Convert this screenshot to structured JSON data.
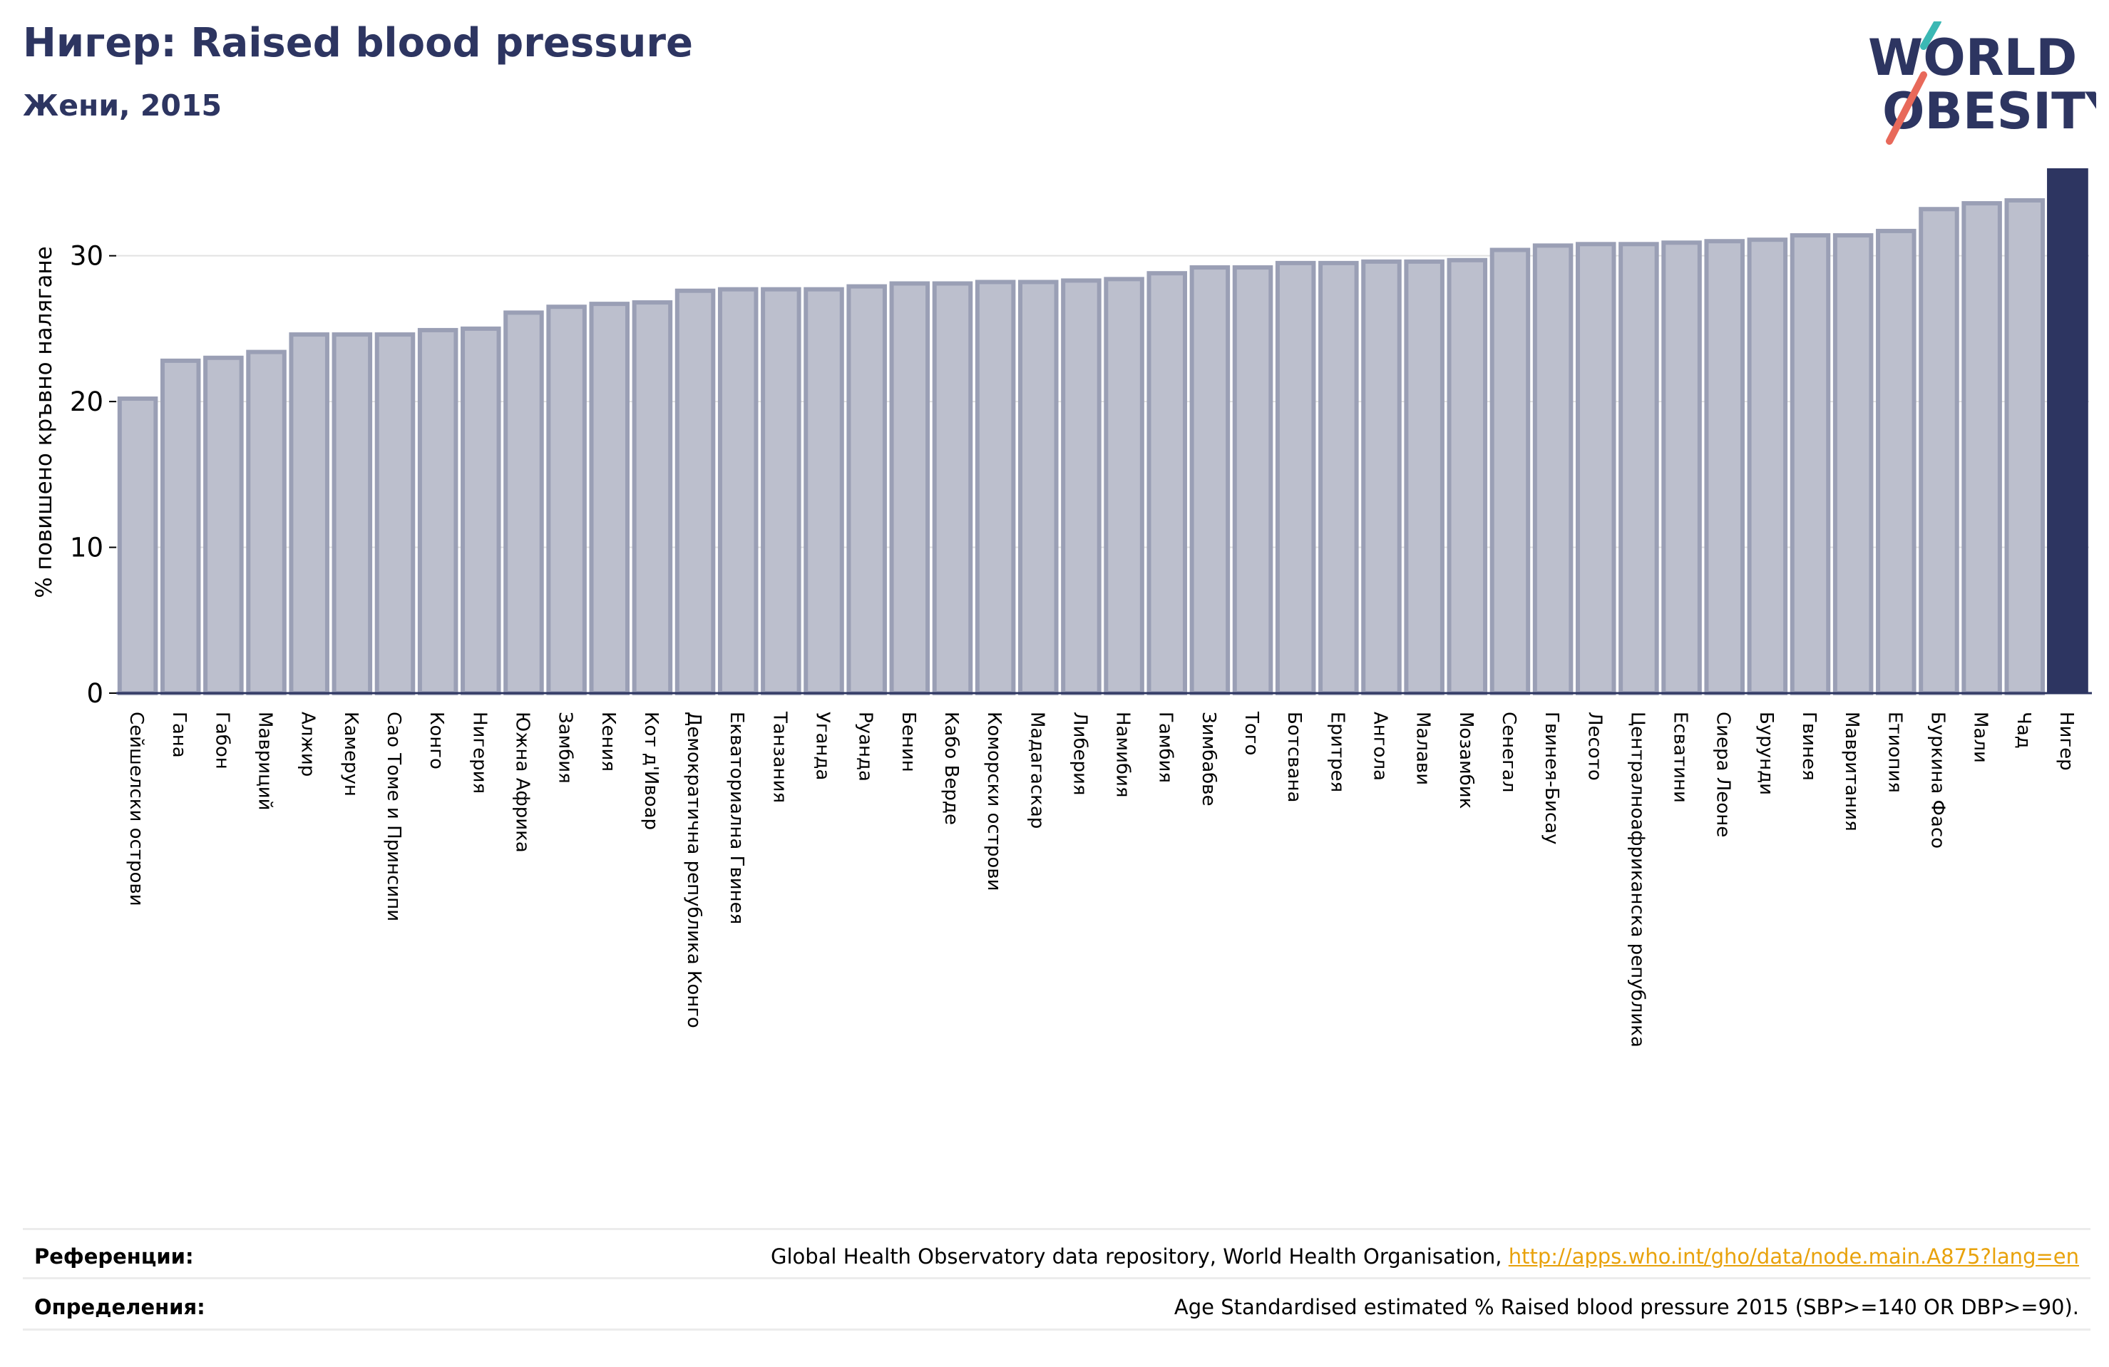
{
  "header": {
    "title": "Нигер: Raised blood pressure",
    "subtitle": "Жени, 2015"
  },
  "logo": {
    "line1": "WORLD",
    "line2": "OBESITY",
    "accent_colors": [
      "#3bb8b4",
      "#e8695a"
    ],
    "text_color": "#2d3561"
  },
  "chart_data": {
    "type": "bar",
    "ylabel": "% повишено кръвно налягане",
    "xlabel": "",
    "ylim": [
      0,
      36
    ],
    "yticks": [
      0,
      10,
      20,
      30
    ],
    "grid": true,
    "highlight_category": "Нигер",
    "highlight_color": "#2d3561",
    "bar_color": "#bcbfcd",
    "bar_edge_color": "#9a9fb5",
    "categories": [
      "Сейшелски острови",
      "Гана",
      "Габон",
      "Мавриций",
      "Алжир",
      "Камерун",
      "Сао Томе и Принсипи",
      "Конго",
      "Нигерия",
      "Южна Африка",
      "Замбия",
      "Кения",
      "Кот д'Ивоар",
      "Демократична република Конго",
      "Екваториална Гвинея",
      "Танзания",
      "Уганда",
      "Руанда",
      "Бенин",
      "Кабо Верде",
      "Коморски острови",
      "Мадагаскар",
      "Либерия",
      "Намибия",
      "Гамбия",
      "Зимбабве",
      "Того",
      "Ботсвана",
      "Еритрея",
      "Ангола",
      "Малави",
      "Мозамбик",
      "Сенегал",
      "Гвинея-Бисау",
      "Лесото",
      "Централноафриканска република",
      "Есватини",
      "Сиера Леоне",
      "Бурунди",
      "Гвинея",
      "Мавритания",
      "Етиопия",
      "Буркина Фасо",
      "Мали",
      "Чад",
      "Нигер"
    ],
    "values": [
      20.2,
      22.8,
      23.0,
      23.4,
      24.6,
      24.6,
      24.6,
      24.9,
      25.0,
      26.1,
      26.5,
      26.7,
      26.8,
      27.6,
      27.7,
      27.7,
      27.7,
      27.9,
      28.1,
      28.1,
      28.2,
      28.2,
      28.3,
      28.4,
      28.8,
      29.2,
      29.2,
      29.5,
      29.5,
      29.6,
      29.6,
      29.7,
      30.4,
      30.7,
      30.8,
      30.8,
      30.9,
      31.0,
      31.1,
      31.4,
      31.4,
      31.7,
      33.2,
      33.6,
      33.8,
      36.0
    ]
  },
  "footer": {
    "references_label": "Референции:",
    "references_text": "Global Health Observatory data repository, World Health Organisation, ",
    "references_link": "http://apps.who.int/gho/data/node.main.A875?lang=en",
    "definitions_label": "Определения:",
    "definitions_text": "Age Standardised estimated % Raised blood pressure 2015 (SBP>=140 OR DBP>=90)."
  }
}
